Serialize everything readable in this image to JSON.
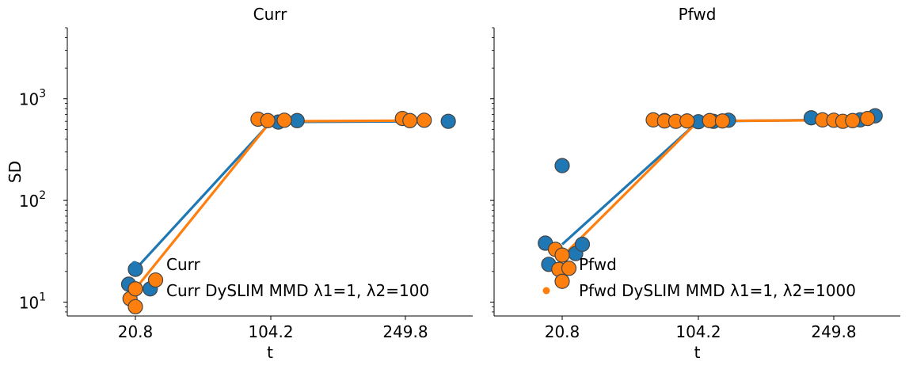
{
  "chart_data": [
    {
      "type": "scatter",
      "title": "Curr",
      "xlabel": "t",
      "ylabel": "SD",
      "x_tick_labels": [
        "20.8",
        "104.2",
        "249.8"
      ],
      "y_scale": "log",
      "y_tick_labels": [
        {
          "base": "10",
          "exp": "1",
          "value": 10
        },
        {
          "base": "10",
          "exp": "2",
          "value": 100
        },
        {
          "base": "10",
          "exp": "3",
          "value": 1000
        }
      ],
      "ylim": [
        7.3,
        5000
      ],
      "legend": "lower-right",
      "grid": false,
      "series": [
        {
          "name": "Curr",
          "color": "#1f77b4",
          "points": [
            [
              -1,
              15
            ],
            [
              0,
              21
            ],
            [
              2.2,
              13.5
            ],
            [
              1,
              590
            ],
            [
              3.5,
              610
            ],
            [
              5.7,
              600
            ]
          ],
          "trend": [
            [
              0,
              21
            ],
            [
              1,
              590
            ],
            [
              2,
              600
            ]
          ]
        },
        {
          "name": "Curr DySLIM MMD λ1=1, λ2=100",
          "color": "#ff7f0e",
          "points": [
            [
              -0.8,
              10.8
            ],
            [
              0,
              9.0
            ],
            [
              0,
              13.5
            ],
            [
              3,
              16.5
            ],
            [
              -1.7,
              630
            ],
            [
              -0.4,
              610
            ],
            [
              1.8,
              615
            ],
            [
              -0.4,
              640
            ],
            [
              0.6,
              610
            ],
            [
              2.5,
              615
            ]
          ],
          "trend": [
            [
              0,
              13.5
            ],
            [
              1,
              600
            ],
            [
              2,
              610
            ]
          ]
        }
      ]
    },
    {
      "type": "scatter",
      "title": "Pfwd",
      "xlabel": "t",
      "ylabel": "",
      "x_tick_labels": [
        "20.8",
        "104.2",
        "249.8"
      ],
      "y_scale": "log",
      "ylim": [
        7.3,
        5000
      ],
      "legend": "lower-right",
      "grid": false,
      "series": [
        {
          "name": "Pfwd",
          "color": "#1f77b4",
          "points": [
            [
              -2.5,
              38
            ],
            [
              -2,
              23.5
            ],
            [
              0,
              220
            ],
            [
              2,
              30
            ],
            [
              3,
              37
            ],
            [
              -4.5,
              610
            ],
            [
              0,
              595
            ],
            [
              2,
              600
            ],
            [
              4,
              615
            ],
            [
              -3,
              650
            ],
            [
              3.5,
              620
            ],
            [
              5.5,
              680
            ]
          ],
          "trend": [
            [
              0,
              37
            ],
            [
              1,
              600
            ],
            [
              2,
              620
            ]
          ]
        },
        {
          "name": "Pfwd DySLIM MMD λ1=1, λ2=1000",
          "color": "#ff7f0e",
          "points": [
            [
              -1,
              33
            ],
            [
              -0.5,
              21
            ],
            [
              0,
              29
            ],
            [
              1,
              21.5
            ],
            [
              0,
              16
            ],
            [
              -6,
              620
            ],
            [
              -4.5,
              605
            ],
            [
              -3,
              600
            ],
            [
              -1.5,
              605
            ],
            [
              1.5,
              610
            ],
            [
              3.2,
              605
            ],
            [
              -1.5,
              620
            ],
            [
              0,
              615
            ],
            [
              1.2,
              600
            ],
            [
              2.5,
              610
            ],
            [
              4.5,
              640
            ]
          ],
          "trend": [
            [
              0,
              28
            ],
            [
              1,
              605
            ],
            [
              2,
              615
            ]
          ]
        }
      ]
    }
  ]
}
